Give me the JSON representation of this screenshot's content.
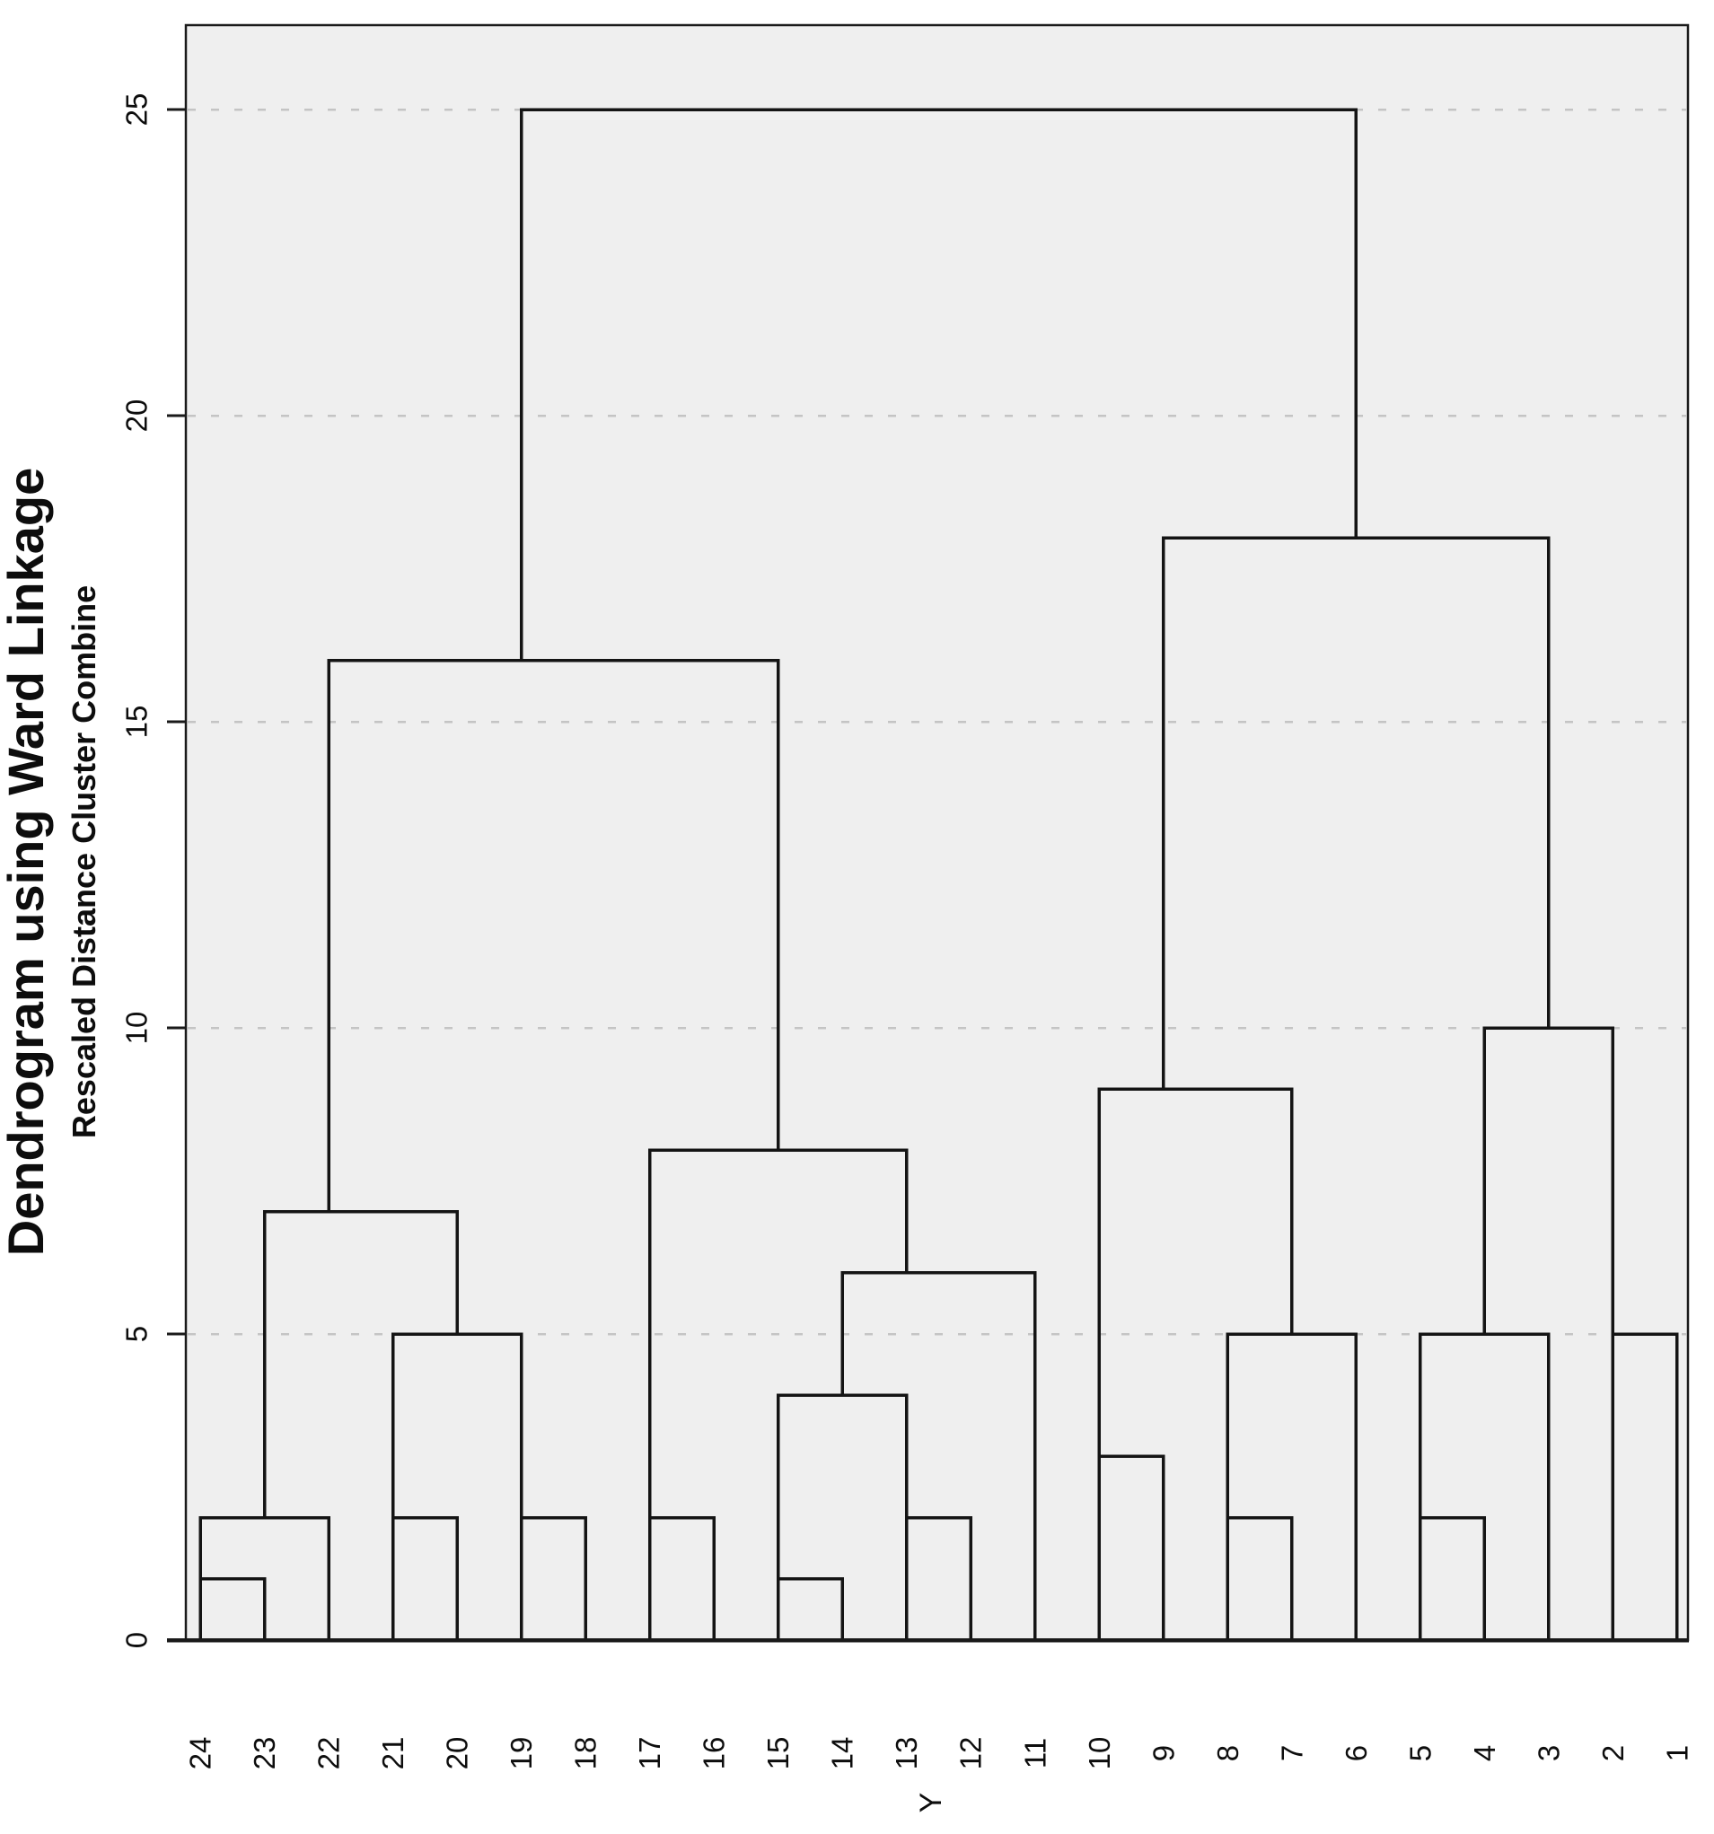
{
  "chart_data": {
    "type": "dendrogram",
    "title": "Dendrogram using Ward Linkage",
    "subtitle": "Rescaled Distance Cluster Combine",
    "case_axis_label": "Y",
    "distance_axis": {
      "ticks": [
        0,
        5,
        10,
        15,
        20,
        25
      ],
      "range": [
        0,
        25
      ],
      "gridlines_at": [
        5,
        10,
        15,
        20,
        25
      ],
      "gridline_style": "dashed"
    },
    "leaf_order": [
      "24",
      "23",
      "22",
      "21",
      "20",
      "19",
      "18",
      "17",
      "16",
      "15",
      "14",
      "13",
      "12",
      "11",
      "10",
      "9",
      "8",
      "7",
      "6",
      "5",
      "4",
      "3",
      "2",
      "1"
    ],
    "merges": [
      {
        "id": "L1",
        "left": "24",
        "right": "23",
        "height": 1,
        "anchor": "24"
      },
      {
        "id": "L2",
        "left": "L1",
        "right": "22",
        "height": 2,
        "anchor": "23"
      },
      {
        "id": "L3",
        "left": "21",
        "right": "20",
        "height": 2,
        "anchor": "21"
      },
      {
        "id": "L4",
        "left": "19",
        "right": "18",
        "height": 2,
        "anchor": "19"
      },
      {
        "id": "L5",
        "left": "L3",
        "right": "L4",
        "height": 5,
        "anchor": "20"
      },
      {
        "id": "L6",
        "left": "L2",
        "right": "L5",
        "height": 7,
        "anchor": "22"
      },
      {
        "id": "L7",
        "left": "17",
        "right": "16",
        "height": 2,
        "anchor": "17"
      },
      {
        "id": "L8",
        "left": "15",
        "right": "14",
        "height": 1,
        "anchor": "15"
      },
      {
        "id": "L9",
        "left": "13",
        "right": "12",
        "height": 2,
        "anchor": "13"
      },
      {
        "id": "L10",
        "left": "L8",
        "right": "L9",
        "height": 4,
        "anchor": "14"
      },
      {
        "id": "L11",
        "left": "L10",
        "right": "11",
        "height": 6,
        "anchor": "13"
      },
      {
        "id": "L12",
        "left": "L7",
        "right": "L11",
        "height": 8,
        "anchor": "15"
      },
      {
        "id": "L13",
        "left": "L6",
        "right": "L12",
        "height": 16,
        "anchor": "19"
      },
      {
        "id": "R1",
        "left": "10",
        "right": "9",
        "height": 3,
        "anchor": "10"
      },
      {
        "id": "R2",
        "left": "8",
        "right": "7",
        "height": 2,
        "anchor": "8"
      },
      {
        "id": "R3",
        "left": "R2",
        "right": "6",
        "height": 5,
        "anchor": "7"
      },
      {
        "id": "R4",
        "left": "R1",
        "right": "R3",
        "height": 9,
        "anchor": "9"
      },
      {
        "id": "R5",
        "left": "5",
        "right": "4",
        "height": 2,
        "anchor": "5"
      },
      {
        "id": "R6",
        "left": "R5",
        "right": "3",
        "height": 5,
        "anchor": "4"
      },
      {
        "id": "R7",
        "left": "2",
        "right": "1",
        "height": 5,
        "anchor": "2"
      },
      {
        "id": "R8",
        "left": "R6",
        "right": "R7",
        "height": 10,
        "anchor": "3"
      },
      {
        "id": "R9",
        "left": "R4",
        "right": "R8",
        "height": 18,
        "anchor": "6"
      },
      {
        "id": "ROOT",
        "left": "L13",
        "right": "R9",
        "height": 25,
        "anchor": null
      }
    ],
    "colors": {
      "plot_background": "#efefef",
      "line": "#141414",
      "gridline": "#c4c4c4",
      "frame": "#1a1a1a",
      "text": "#0d0d0d"
    }
  }
}
